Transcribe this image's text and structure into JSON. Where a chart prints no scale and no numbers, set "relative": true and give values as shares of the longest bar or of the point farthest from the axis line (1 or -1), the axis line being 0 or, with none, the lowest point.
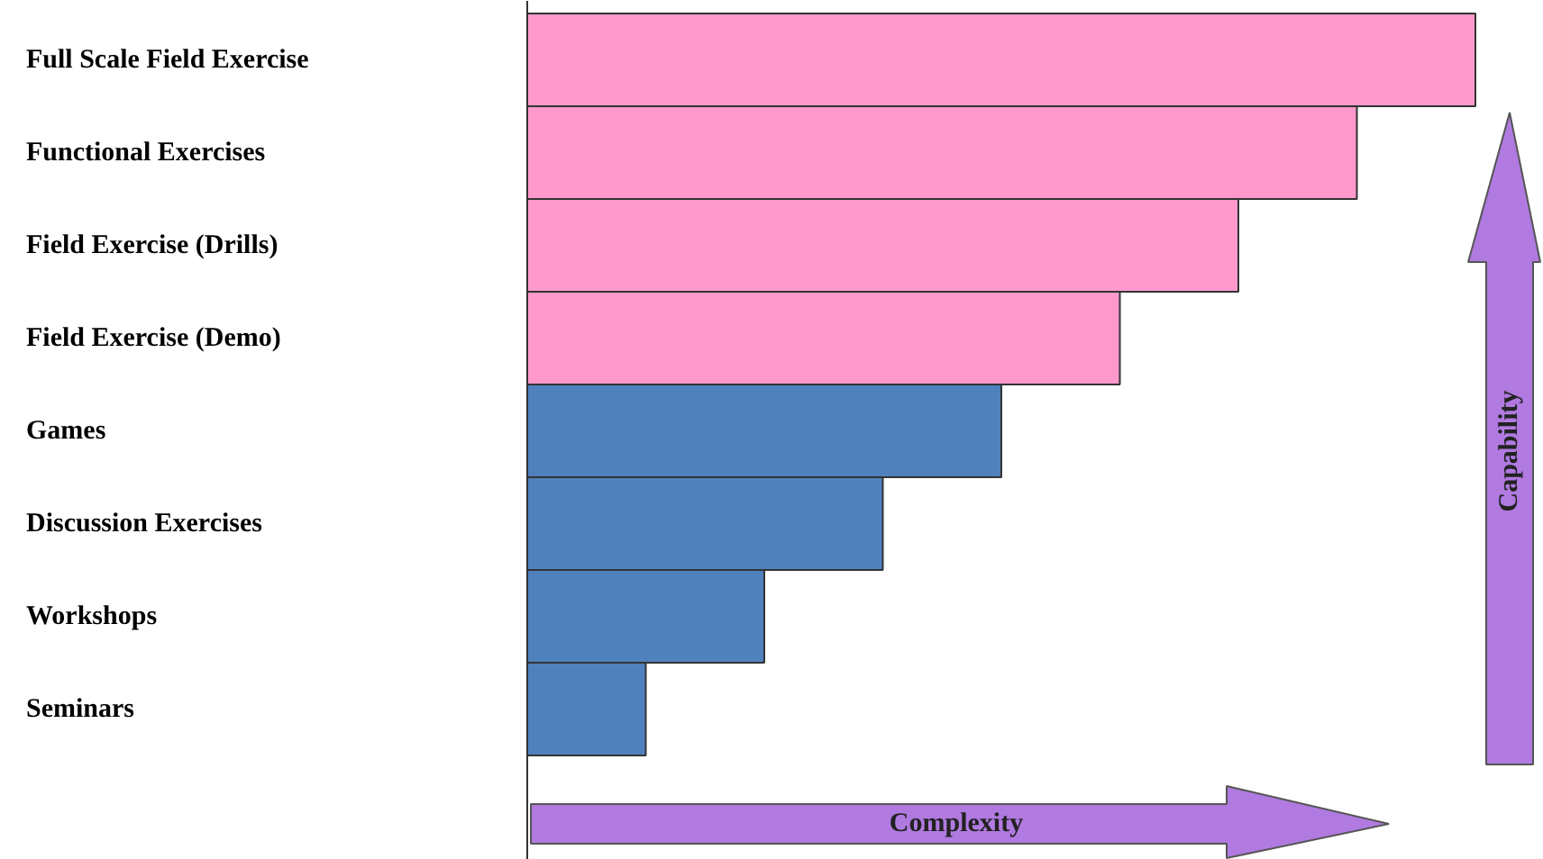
{
  "chart_data": {
    "type": "bar",
    "orientation": "horizontal",
    "relative": true,
    "categories": [
      "Full Scale Field Exercise",
      "Functional Exercises",
      "Field Exercise (Drills)",
      "Field Exercise (Demo)",
      "Games",
      "Discussion Exercises",
      "Workshops",
      "Seminars"
    ],
    "values": [
      1,
      0.875,
      0.75,
      0.625,
      0.5,
      0.375,
      0.25,
      0.125
    ],
    "colors": [
      "#ff99cc",
      "#ff99cc",
      "#ff99cc",
      "#ff99cc",
      "#4f81bd",
      "#4f81bd",
      "#4f81bd",
      "#4f81bd"
    ],
    "annotations": [
      "Complexity",
      "Capability"
    ]
  }
}
